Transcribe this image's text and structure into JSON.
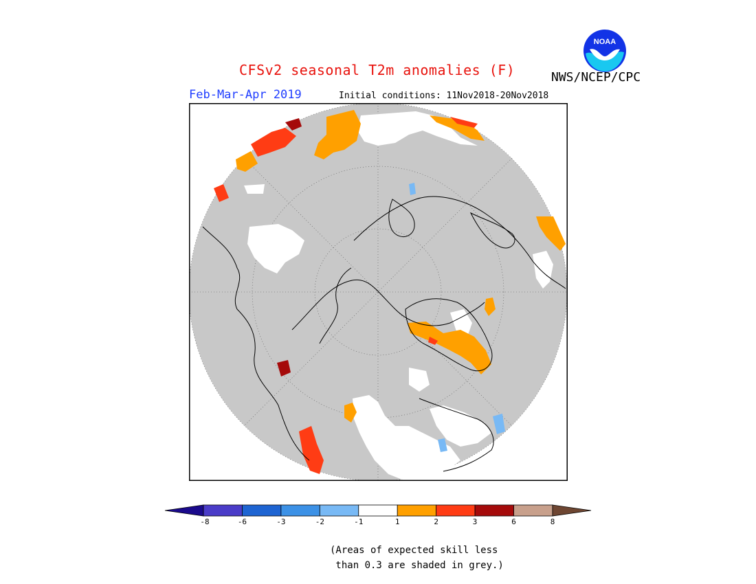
{
  "header": {
    "title": "CFSv2 seasonal T2m anomalies (F)",
    "agency": "NWS/NCEP/CPC",
    "season": "Feb-Mar-Apr 2019",
    "initial_conditions": "Initial conditions: 11Nov2018-20Nov2018",
    "logo_text": "NOAA"
  },
  "colors": {
    "title": "#e8120c",
    "season": "#1e3cff",
    "ocean_grey": "#c8c8c8",
    "coast": "#000000"
  },
  "legend": {
    "tick_labels": [
      "-8",
      "-6",
      "-3",
      "-2",
      "-1",
      "1",
      "2",
      "3",
      "6",
      "8"
    ],
    "bins": [
      {
        "color": "#1a0a8c"
      },
      {
        "color": "#4a3cc8"
      },
      {
        "color": "#1e64d2"
      },
      {
        "color": "#3c91e6"
      },
      {
        "color": "#78b9f5"
      },
      {
        "color": "#ffffff"
      },
      {
        "color": "#ffa000"
      },
      {
        "color": "#ff3c14"
      },
      {
        "color": "#a50a0a"
      },
      {
        "color": "#c8a08c"
      },
      {
        "color": "#6e4632"
      }
    ]
  },
  "note": {
    "line1": "(Areas of expected skill less",
    "line2": " than 0.3 are shaded in grey.)"
  }
}
